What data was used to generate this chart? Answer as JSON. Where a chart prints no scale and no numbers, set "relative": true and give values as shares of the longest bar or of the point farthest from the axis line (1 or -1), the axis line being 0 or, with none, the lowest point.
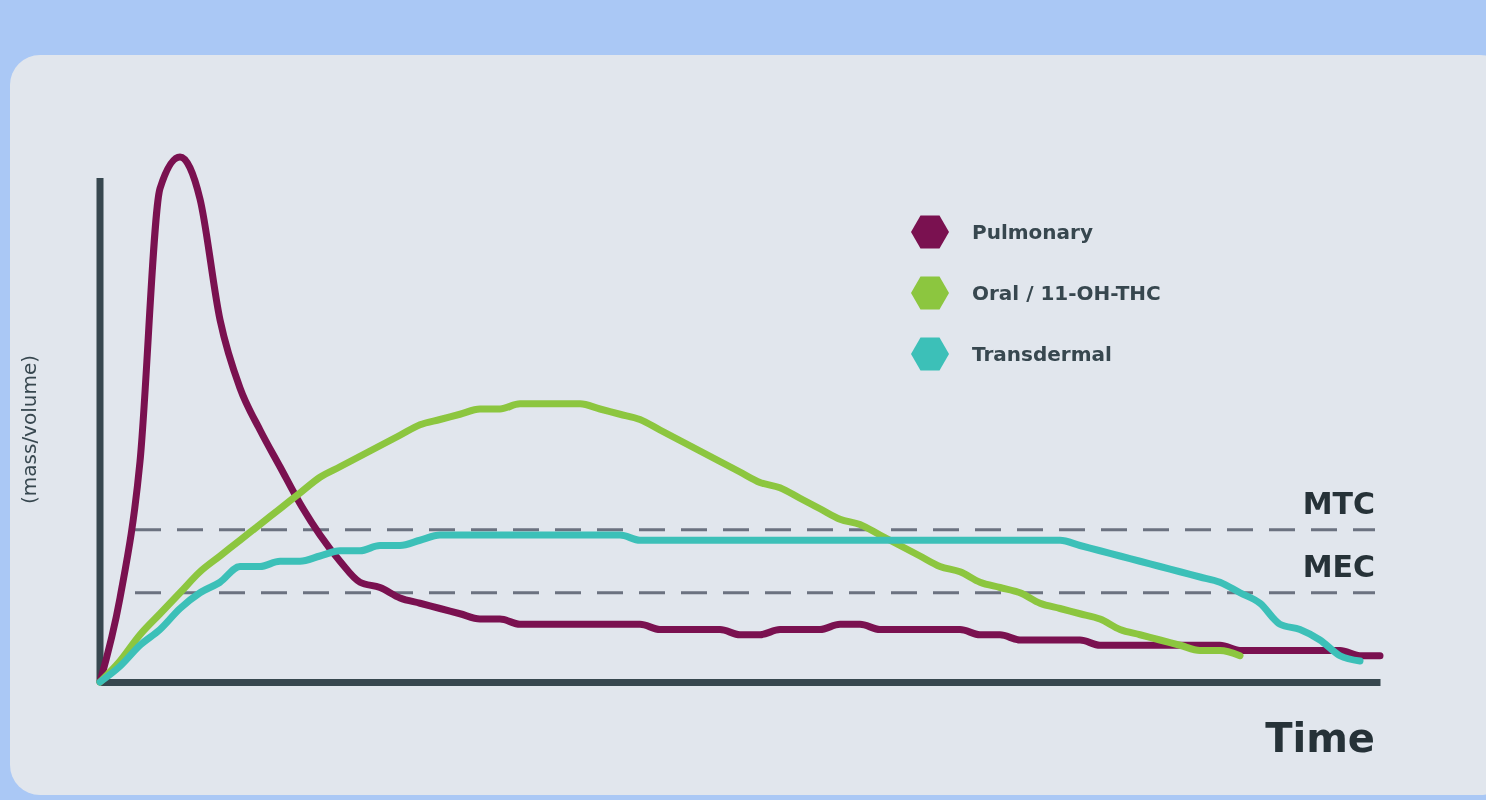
{
  "chart_data": {
    "type": "line",
    "relative": true,
    "xlabel": "Time",
    "ylabel": "(mass/volume)",
    "legend": "top right",
    "line_style": "solid",
    "categories": [
      null,
      null,
      null,
      null,
      null,
      null,
      null,
      null,
      null,
      null,
      null,
      null,
      null,
      null,
      null,
      null,
      null,
      null,
      null,
      null,
      null,
      null,
      null,
      null,
      null,
      null,
      null,
      null,
      null,
      null,
      null,
      null,
      null,
      null,
      null,
      null,
      null,
      null,
      null,
      null,
      null,
      null,
      null,
      null,
      null,
      null,
      null,
      null,
      null,
      null,
      null,
      null,
      null,
      null,
      null,
      null,
      null,
      null,
      null,
      null,
      null,
      null,
      null,
      null,
      null
    ],
    "series": [
      {
        "name": "Pulmonary",
        "color": "#7a1150",
        "values": [
          0,
          0.16,
          0.42,
          0.94,
          1,
          0.92,
          0.69,
          0.56,
          0.48,
          0.41,
          0.34,
          0.28,
          0.23,
          0.19,
          0.18,
          0.16,
          0.15,
          0.14,
          0.13,
          0.12,
          0.12,
          0.11,
          0.11,
          0.11,
          0.11,
          0.11,
          0.11,
          0.11,
          0.1,
          0.1,
          0.1,
          0.1,
          0.09,
          0.09,
          0.1,
          0.1,
          0.1,
          0.11,
          0.11,
          0.1,
          0.1,
          0.1,
          0.1,
          0.1,
          0.09,
          0.09,
          0.08,
          0.08,
          0.08,
          0.08,
          0.07,
          0.07,
          0.07,
          0.07,
          0.07,
          0.07,
          0.07,
          0.06,
          0.06,
          0.06,
          0.06,
          0.06,
          0.06,
          0.05,
          0.05
        ]
      },
      {
        "name": "Oral / 11-OH-THC",
        "color": "#8cc63f",
        "values": [
          0,
          0.04,
          0.09,
          0.13,
          0.17,
          0.21,
          0.24,
          0.27,
          0.3,
          0.33,
          0.36,
          0.39,
          0.41,
          0.43,
          0.45,
          0.47,
          0.49,
          0.5,
          0.51,
          0.52,
          0.52,
          0.53,
          0.53,
          0.53,
          0.53,
          0.52,
          0.51,
          0.5,
          0.48,
          0.46,
          0.44,
          0.42,
          0.4,
          0.38,
          0.37,
          0.35,
          0.33,
          0.31,
          0.3,
          0.28,
          0.26,
          0.24,
          0.22,
          0.21,
          0.19,
          0.18,
          0.17,
          0.15,
          0.14,
          0.13,
          0.12,
          0.1,
          0.09,
          0.08,
          0.07,
          0.06,
          0.06,
          0.05,
          null,
          null,
          null,
          null,
          null,
          null,
          null
        ]
      },
      {
        "name": "Transdermal",
        "color": "#3cc0b8",
        "values": [
          0,
          0.03,
          0.07,
          0.1,
          0.14,
          0.17,
          0.19,
          0.22,
          0.22,
          0.23,
          0.23,
          0.24,
          0.25,
          0.25,
          0.26,
          0.26,
          0.27,
          0.28,
          0.28,
          0.28,
          0.28,
          0.28,
          0.28,
          0.28,
          0.28,
          0.28,
          0.28,
          0.27,
          0.27,
          0.27,
          0.27,
          0.27,
          0.27,
          0.27,
          0.27,
          0.27,
          0.27,
          0.27,
          0.27,
          0.27,
          0.27,
          0.27,
          0.27,
          0.27,
          0.27,
          0.27,
          0.27,
          0.27,
          0.27,
          0.26,
          0.25,
          0.24,
          0.23,
          0.22,
          0.21,
          0.2,
          0.19,
          0.17,
          0.15,
          0.11,
          0.1,
          0.08,
          0.05,
          0.04,
          null
        ]
      }
    ],
    "ref_lines": [
      {
        "axis": "y",
        "value": 0.29,
        "label": "MTC",
        "color": "#6b7280",
        "line_style": "dashed"
      },
      {
        "axis": "y",
        "value": 0.17,
        "label": "MEC",
        "color": "#6b7280",
        "line_style": "dashed"
      }
    ]
  }
}
